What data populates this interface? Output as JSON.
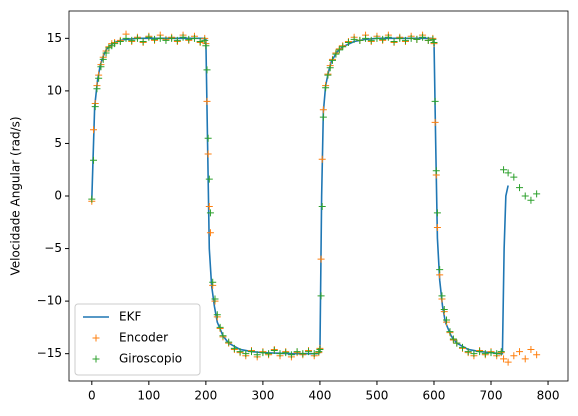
{
  "chart_data": {
    "type": "line",
    "ylabel": "Velocidade Angular (rad/s)",
    "xlim": [
      -40,
      835
    ],
    "ylim": [
      -17.6,
      17.6
    ],
    "xticks": [
      0,
      100,
      200,
      300,
      400,
      500,
      600,
      700,
      800
    ],
    "yticks": [
      {
        "value": -15,
        "label": "−15"
      },
      {
        "value": -10,
        "label": "−10"
      },
      {
        "value": -5,
        "label": "−5"
      },
      0,
      5,
      10,
      15
    ],
    "legend": "lower left",
    "series": [
      {
        "name": "EKF",
        "color": "#1f77b4",
        "style": "line",
        "x": [
          0,
          5,
          10,
          15,
          20,
          25,
          30,
          40,
          50,
          60,
          80,
          100,
          150,
          195,
          200,
          203,
          206,
          210,
          215,
          220,
          230,
          240,
          260,
          280,
          300,
          350,
          395,
          400,
          403,
          406,
          410,
          415,
          420,
          430,
          440,
          460,
          480,
          500,
          550,
          595,
          600,
          603,
          606,
          610,
          615,
          620,
          630,
          640,
          660,
          680,
          700,
          715,
          720,
          723,
          726,
          730
        ],
        "values": [
          -0.3,
          8.5,
          11,
          12.5,
          13.3,
          13.9,
          14.2,
          14.6,
          14.8,
          14.9,
          15,
          15,
          15,
          15,
          14.9,
          5,
          -5,
          -8.5,
          -10.5,
          -12,
          -13.3,
          -14,
          -14.6,
          -14.8,
          -14.9,
          -15,
          -15,
          -14.9,
          0,
          8,
          10.5,
          11.8,
          12.8,
          13.7,
          14.2,
          14.7,
          14.9,
          15,
          15,
          15,
          14.9,
          5,
          -4,
          -8,
          -10.5,
          -12,
          -13.3,
          -14,
          -14.6,
          -14.8,
          -14.9,
          -15,
          -15,
          -5,
          0,
          1
        ]
      },
      {
        "name": "Encoder",
        "color": "#ff7f0e",
        "style": "plus",
        "x": [
          0,
          3,
          6,
          9,
          12,
          16,
          20,
          25,
          30,
          35,
          40,
          50,
          60,
          70,
          80,
          90,
          100,
          110,
          120,
          130,
          140,
          150,
          160,
          170,
          180,
          190,
          198,
          200,
          202,
          204,
          206,
          208,
          212,
          216,
          220,
          225,
          230,
          240,
          250,
          260,
          270,
          280,
          290,
          300,
          310,
          320,
          330,
          340,
          350,
          360,
          370,
          380,
          390,
          398,
          400,
          402,
          404,
          406,
          410,
          414,
          418,
          422,
          428,
          434,
          440,
          450,
          460,
          470,
          480,
          490,
          500,
          510,
          520,
          530,
          540,
          550,
          560,
          570,
          580,
          590,
          598,
          600,
          602,
          604,
          606,
          610,
          614,
          618,
          622,
          628,
          634,
          640,
          650,
          660,
          670,
          680,
          690,
          700,
          710,
          718,
          722,
          730,
          740,
          750,
          760,
          770,
          780
        ],
        "values": [
          -0.5,
          6.3,
          8.8,
          10.5,
          11.5,
          12.5,
          13.2,
          13.8,
          14.2,
          14.5,
          14.6,
          14.8,
          15.4,
          14.7,
          15.1,
          14.6,
          15.2,
          14.8,
          15.3,
          14.9,
          15.1,
          14.7,
          15.3,
          14.8,
          15.2,
          14.6,
          15.0,
          14.5,
          9,
          4,
          -1,
          -3.5,
          -8.5,
          -10,
          -11.5,
          -12.6,
          -13.4,
          -14,
          -14.6,
          -14.9,
          -15.2,
          -14.7,
          -15.3,
          -14.8,
          -15.1,
          -14.6,
          -15.2,
          -14.8,
          -15.3,
          -14.9,
          -15.1,
          -14.7,
          -15.2,
          -14.9,
          -14.5,
          -6,
          3.5,
          8.2,
          10.5,
          11.6,
          12.4,
          13,
          13.6,
          14,
          14.3,
          14.7,
          15.1,
          14.8,
          15.3,
          14.7,
          15.2,
          14.8,
          15.3,
          14.6,
          15.1,
          14.7,
          15.2,
          14.9,
          15.3,
          14.8,
          15,
          14.5,
          7,
          2,
          -3,
          -7.5,
          -9.8,
          -11,
          -12,
          -13,
          -13.7,
          -14,
          -14.5,
          -14.9,
          -15.2,
          -14.7,
          -15.1,
          -14.8,
          -15.2,
          -14.9,
          -15.5,
          -15.8,
          -15.2,
          -14.8,
          -15.5,
          -14.6,
          -15.1
        ]
      },
      {
        "name": "Giroscopio",
        "color": "#2ca02c",
        "style": "plus",
        "x": [
          0,
          3,
          6,
          9,
          12,
          16,
          20,
          25,
          30,
          35,
          40,
          50,
          60,
          70,
          80,
          90,
          100,
          110,
          120,
          130,
          140,
          150,
          160,
          170,
          180,
          190,
          198,
          200,
          202,
          204,
          206,
          208,
          212,
          216,
          220,
          225,
          230,
          240,
          250,
          260,
          270,
          280,
          290,
          300,
          310,
          320,
          330,
          340,
          350,
          360,
          370,
          380,
          390,
          398,
          400,
          402,
          404,
          406,
          410,
          414,
          418,
          422,
          428,
          434,
          440,
          450,
          460,
          470,
          480,
          490,
          500,
          510,
          520,
          530,
          540,
          550,
          560,
          570,
          580,
          590,
          598,
          600,
          602,
          604,
          606,
          610,
          614,
          618,
          622,
          628,
          634,
          640,
          650,
          660,
          670,
          680,
          690,
          700,
          710,
          718,
          722,
          730,
          740,
          750,
          760,
          770,
          780
        ],
        "values": [
          -0.3,
          3.4,
          8.5,
          10.2,
          11.2,
          12.3,
          13,
          13.6,
          14.1,
          14.3,
          14.5,
          14.7,
          15,
          14.8,
          15,
          14.7,
          15.1,
          14.9,
          15,
          14.8,
          15,
          14.8,
          15.1,
          14.9,
          15,
          14.7,
          14.8,
          14.3,
          12,
          5.5,
          1.6,
          -1.6,
          -8.2,
          -9.8,
          -11.3,
          -12.5,
          -13.3,
          -13.9,
          -14.5,
          -14.8,
          -15,
          -14.8,
          -15.1,
          -14.9,
          -15,
          -14.7,
          -15,
          -14.9,
          -15.1,
          -14.8,
          -15,
          -14.8,
          -15,
          -14.8,
          -14.6,
          -9.5,
          -1,
          7.5,
          10.3,
          11.5,
          12.2,
          12.9,
          13.5,
          13.9,
          14.2,
          14.6,
          14.9,
          14.8,
          15,
          14.8,
          15,
          14.9,
          15.1,
          14.7,
          15,
          14.8,
          15,
          14.9,
          15.1,
          14.8,
          14.9,
          14.6,
          9,
          2.4,
          -1.6,
          -7,
          -9.5,
          -10.8,
          -11.8,
          -12.9,
          -13.6,
          -14,
          -14.4,
          -14.8,
          -15,
          -14.8,
          -15,
          -14.9,
          -15,
          -14.8,
          2.5,
          2.2,
          1.8,
          0.8,
          0,
          -0.4,
          0.2
        ]
      }
    ]
  }
}
